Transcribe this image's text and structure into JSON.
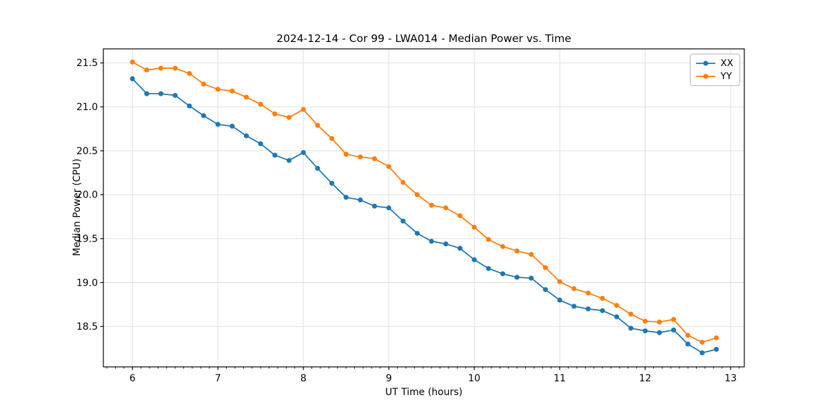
{
  "chart_data": {
    "type": "line",
    "title": "2024-12-14 - Cor 99 - LWA014 - Median Power vs. Time",
    "xlabel": "UT Time (hours)",
    "ylabel": "Median Power (CPU)",
    "xlim": [
      5.66,
      13.16
    ],
    "ylim": [
      18.04,
      21.66
    ],
    "x_ticks": [
      6,
      7,
      8,
      9,
      10,
      11,
      12,
      13
    ],
    "y_ticks": [
      18.5,
      19.0,
      19.5,
      20.0,
      20.5,
      21.0,
      21.5
    ],
    "x_minor_step": 0.1,
    "grid": "major-both",
    "grid_color": "#e0e0e0",
    "spine_color": "#000000",
    "legend_position": "upper-right",
    "legend_labels": [
      "XX",
      "YY"
    ],
    "x": [
      6.0,
      6.167,
      6.333,
      6.5,
      6.667,
      6.833,
      7.0,
      7.167,
      7.333,
      7.5,
      7.667,
      7.833,
      8.0,
      8.167,
      8.333,
      8.5,
      8.667,
      8.833,
      9.0,
      9.167,
      9.333,
      9.5,
      9.667,
      9.833,
      10.0,
      10.167,
      10.333,
      10.5,
      10.667,
      10.833,
      11.0,
      11.167,
      11.333,
      11.5,
      11.667,
      11.833,
      12.0,
      12.167,
      12.333,
      12.5,
      12.667,
      12.833
    ],
    "series": [
      {
        "name": "XX",
        "color": "#1f77b4",
        "values": [
          21.32,
          21.15,
          21.15,
          21.13,
          21.01,
          20.9,
          20.8,
          20.78,
          20.67,
          20.58,
          20.45,
          20.39,
          20.48,
          20.3,
          20.13,
          19.97,
          19.94,
          19.87,
          19.85,
          19.7,
          19.56,
          19.47,
          19.44,
          19.39,
          19.26,
          19.16,
          19.1,
          19.06,
          19.05,
          18.92,
          18.8,
          18.73,
          18.7,
          18.68,
          18.61,
          18.48,
          18.45,
          18.43,
          18.46,
          18.3,
          18.2,
          18.24
        ]
      },
      {
        "name": "YY",
        "color": "#ff7f0e",
        "values": [
          21.51,
          21.42,
          21.44,
          21.44,
          21.38,
          21.26,
          21.2,
          21.18,
          21.11,
          21.03,
          20.92,
          20.88,
          20.97,
          20.79,
          20.64,
          20.46,
          20.43,
          20.41,
          20.32,
          20.14,
          20.0,
          19.88,
          19.85,
          19.76,
          19.63,
          19.49,
          19.41,
          19.36,
          19.32,
          19.17,
          19.01,
          18.93,
          18.88,
          18.82,
          18.74,
          18.64,
          18.56,
          18.55,
          18.58,
          18.4,
          18.32,
          18.37
        ]
      }
    ]
  }
}
